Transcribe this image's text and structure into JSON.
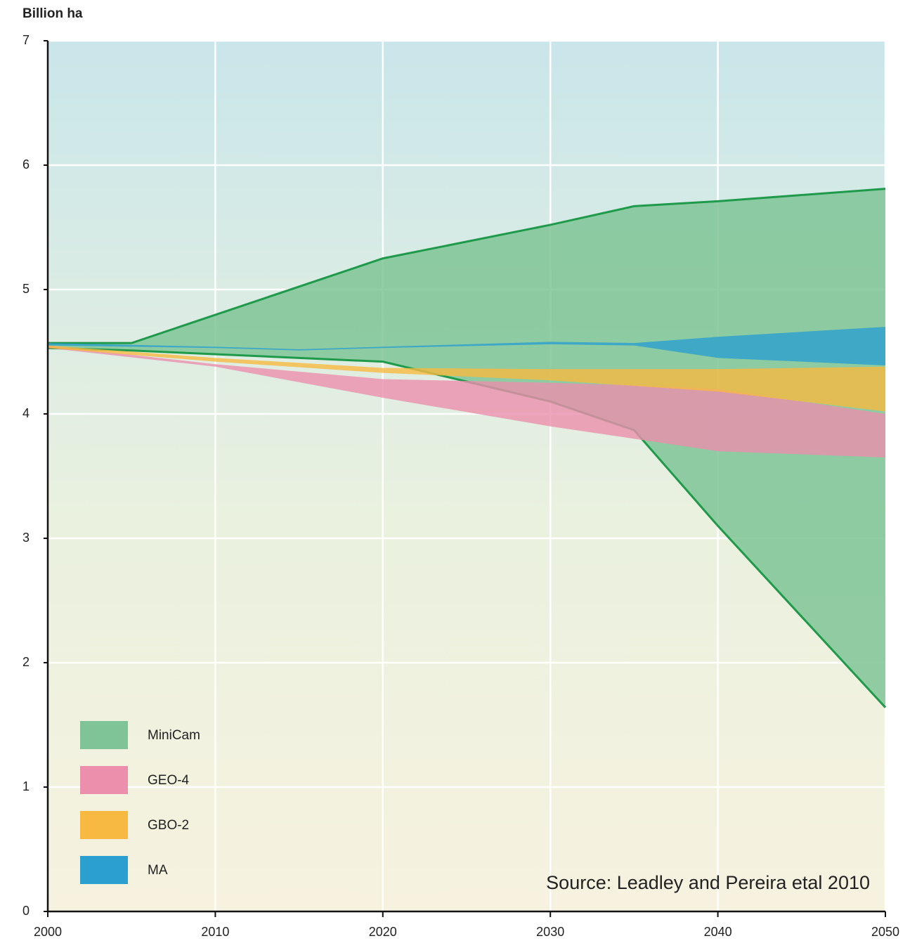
{
  "chart_data": {
    "type": "range-area",
    "y_label": "Billion ha",
    "annotation": "Source: Leadley and Pereira etal 2010",
    "xlim": [
      2000,
      2050
    ],
    "xticks": [
      2000,
      2010,
      2020,
      2030,
      2040,
      2050
    ],
    "ylim": [
      0,
      7
    ],
    "yticks": [
      0,
      1,
      2,
      3,
      4,
      5,
      6,
      7
    ],
    "grid": true,
    "legend": "lower left",
    "series": [
      {
        "name": "MiniCam",
        "color": "#7fc497",
        "line_color": "#1e9a4a",
        "x": [
          2000,
          2005,
          2020,
          2030,
          2035,
          2040,
          2050
        ],
        "high": [
          4.57,
          4.57,
          5.25,
          5.52,
          5.67,
          5.71,
          5.81
        ],
        "low": [
          4.53,
          4.51,
          4.42,
          4.1,
          3.87,
          3.1,
          1.64
        ]
      },
      {
        "name": "GEO-4",
        "color": "#eb8fad",
        "line_color": null,
        "x": [
          2000,
          2010,
          2020,
          2030,
          2035,
          2040,
          2050
        ],
        "high": [
          4.55,
          4.4,
          4.28,
          4.25,
          4.23,
          4.2,
          4.0
        ],
        "low": [
          4.53,
          4.38,
          4.13,
          3.9,
          3.8,
          3.7,
          3.65
        ]
      },
      {
        "name": "GBO-2",
        "color": "#f7b941",
        "line_color": null,
        "x": [
          2000,
          2010,
          2020,
          2030,
          2040,
          2050
        ],
        "high": [
          4.55,
          4.45,
          4.37,
          4.36,
          4.36,
          4.38
        ],
        "low": [
          4.53,
          4.42,
          4.33,
          4.27,
          4.18,
          4.02
        ]
      },
      {
        "name": "MA",
        "color": "#2a9fd0",
        "line_color": null,
        "x": [
          2000,
          2010,
          2015,
          2020,
          2030,
          2035,
          2040,
          2050
        ],
        "high": [
          4.57,
          4.54,
          4.52,
          4.54,
          4.58,
          4.57,
          4.62,
          4.7
        ],
        "low": [
          4.55,
          4.53,
          4.51,
          4.53,
          4.56,
          4.55,
          4.45,
          4.39
        ]
      }
    ]
  }
}
